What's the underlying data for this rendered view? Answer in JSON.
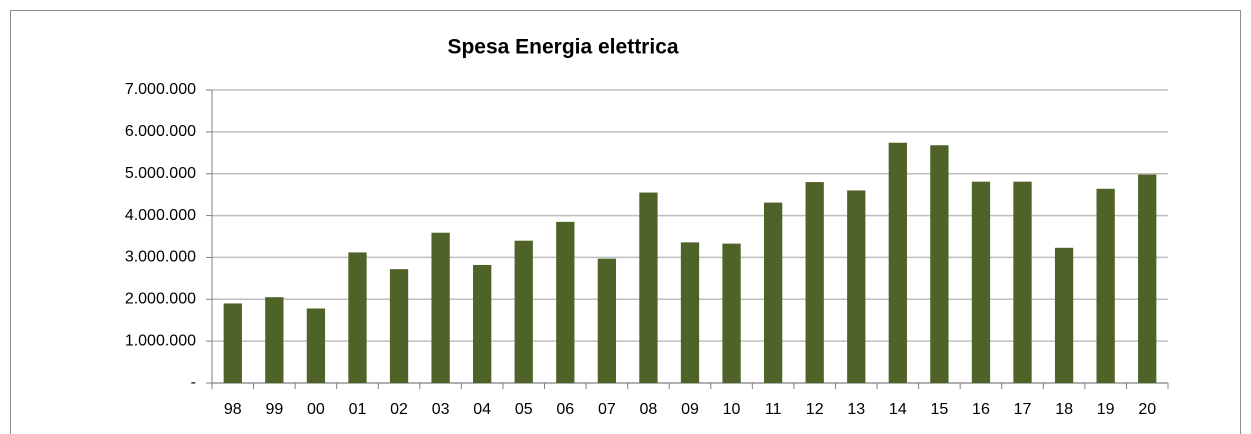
{
  "chart_data": {
    "type": "bar",
    "title": "Spesa Energia elettrica",
    "categories": [
      "98",
      "99",
      "00",
      "01",
      "02",
      "03",
      "04",
      "05",
      "06",
      "07",
      "08",
      "09",
      "10",
      "11",
      "12",
      "13",
      "14",
      "15",
      "16",
      "17",
      "18",
      "19",
      "20"
    ],
    "values": [
      1900000,
      2050000,
      1780000,
      3120000,
      2720000,
      3590000,
      2820000,
      3400000,
      3850000,
      2970000,
      4550000,
      3360000,
      3330000,
      4310000,
      4800000,
      4600000,
      5740000,
      5680000,
      4810000,
      4810000,
      3230000,
      4640000,
      4980000
    ],
    "color": "#4f6228",
    "ylim": [
      0,
      7000000
    ],
    "yticks": [
      {
        "value": 0,
        "label": "-"
      },
      {
        "value": 1000000,
        "label": "1.000.000"
      },
      {
        "value": 2000000,
        "label": "2.000.000"
      },
      {
        "value": 3000000,
        "label": "3.000.000"
      },
      {
        "value": 4000000,
        "label": "4.000.000"
      },
      {
        "value": 5000000,
        "label": "5.000.000"
      },
      {
        "value": 6000000,
        "label": "6.000.000"
      },
      {
        "value": 7000000,
        "label": "7.000.000"
      }
    ],
    "grid": true
  }
}
